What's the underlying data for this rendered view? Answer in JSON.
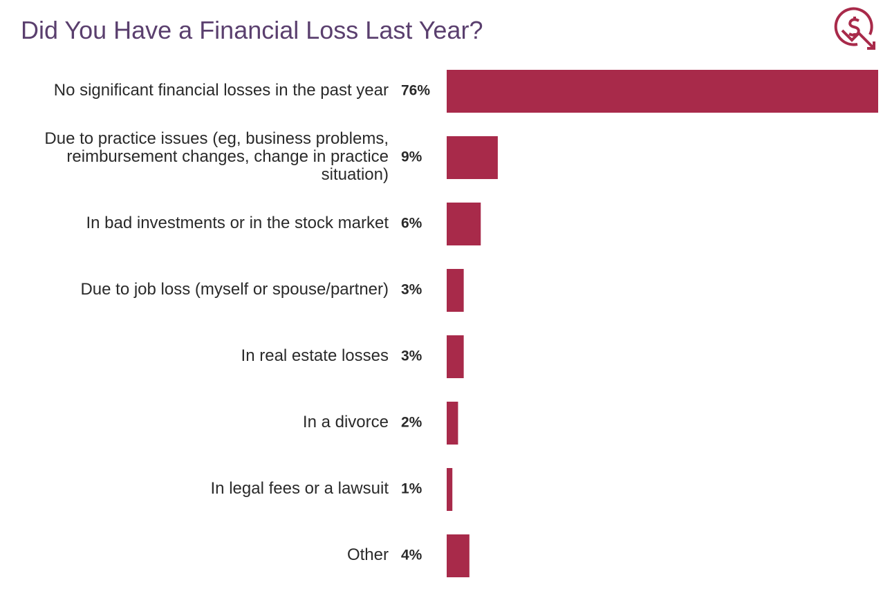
{
  "chart_data": {
    "type": "bar",
    "orientation": "horizontal",
    "title": "Did You Have a Financial Loss Last Year?",
    "categories": [
      "No significant financial losses in the past year",
      "Due to practice issues (eg, business problems, reimbursement changes, change in practice situation)",
      "In bad investments or in the stock market",
      "Due to job loss (myself or spouse/partner)",
      "In real estate losses",
      "In a divorce",
      "In legal fees or a lawsuit",
      "Other"
    ],
    "values": [
      76,
      9,
      6,
      3,
      3,
      2,
      1,
      4
    ],
    "value_labels": [
      "76%",
      "9%",
      "6%",
      "3%",
      "3%",
      "2%",
      "1%",
      "4%"
    ],
    "color": "#a82a4a"
  }
}
